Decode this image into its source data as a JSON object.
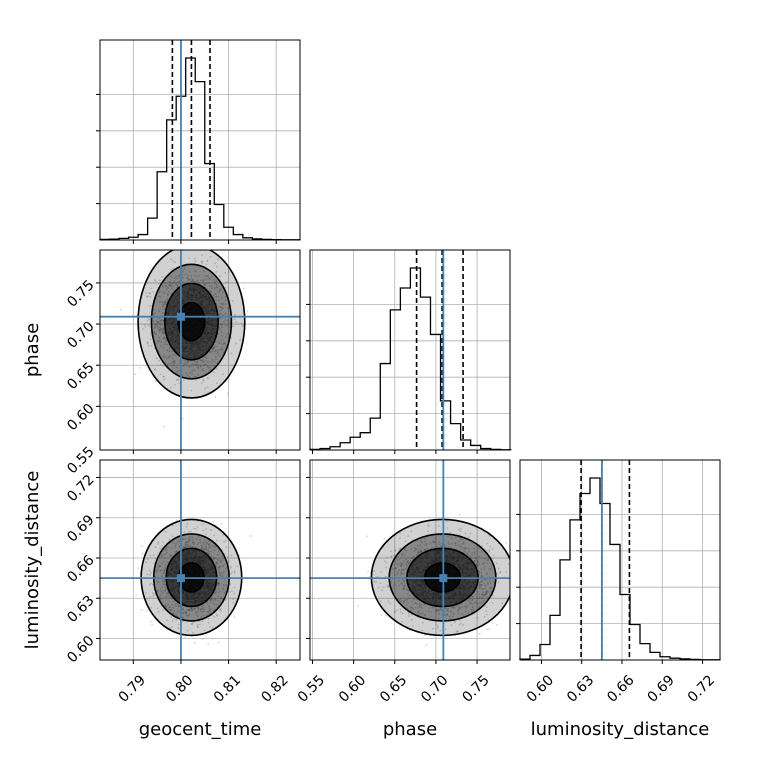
{
  "chart_data": {
    "type": "corner",
    "parameters": [
      "geocent_time",
      "phase",
      "luminosity_distance"
    ],
    "truth": {
      "geocent_time": 0.8,
      "phase": 0.709,
      "luminosity_distance": 0.645
    },
    "colors": {
      "truth": "#4682b4",
      "hist": "#000000",
      "quantile": "#000000",
      "grid": "#b0b0b0",
      "points": "#808080",
      "density": "#000000"
    },
    "grid": true,
    "axes": {
      "geocent_time": {
        "label": "geocent_time",
        "range": [
          0.783,
          0.825
        ],
        "ticks": [
          0.79,
          0.8,
          0.81,
          0.82
        ],
        "tick_labels": [
          "0.79",
          "0.80",
          "0.81",
          "0.82"
        ]
      },
      "phase": {
        "label": "phase",
        "range": [
          0.547,
          0.79
        ],
        "ticks": [
          0.55,
          0.6,
          0.65,
          0.7,
          0.75
        ],
        "tick_labels": [
          "0.55",
          "0.60",
          "0.65",
          "0.70",
          "0.75"
        ]
      },
      "luminosity_distance": {
        "label": "luminosity_distance",
        "range": [
          0.584,
          0.733
        ],
        "ticks": [
          0.6,
          0.63,
          0.66,
          0.69,
          0.72
        ],
        "tick_labels": [
          "0.60",
          "0.63",
          "0.66",
          "0.69",
          "0.72"
        ]
      }
    },
    "row_tick_labels": {
      "phase": [
        "0.60",
        "0.65",
        "0.70",
        "0.75"
      ],
      "luminosity_distance": [
        "0.60",
        "0.63",
        "0.66",
        "0.69",
        "0.72"
      ]
    },
    "row_tick_values": {
      "phase": [
        0.6,
        0.65,
        0.7,
        0.75
      ],
      "luminosity_distance": [
        0.6,
        0.63,
        0.66,
        0.69,
        0.72
      ]
    },
    "marginals": [
      {
        "param": "geocent_time",
        "bin_start": 0.783,
        "bin_width": 0.002,
        "counts": [
          3,
          5,
          9,
          15,
          30,
          120,
          375,
          660,
          790,
          1000,
          870,
          420,
          195,
          70,
          30,
          12,
          6,
          3,
          2,
          1,
          1
        ],
        "quantiles": [
          0.7982,
          0.8022,
          0.8061
        ]
      },
      {
        "param": "phase",
        "bin_start": 0.547,
        "bin_width": 0.0122,
        "counts": [
          3,
          8,
          18,
          40,
          70,
          95,
          175,
          475,
          770,
          890,
          1000,
          840,
          635,
          270,
          145,
          55,
          25,
          8,
          3,
          1
        ],
        "quantiles": [
          0.6765,
          0.7075,
          0.733
        ]
      },
      {
        "param": "luminosity_distance",
        "bin_start": 0.584,
        "bin_width": 0.00745,
        "counts": [
          5,
          25,
          85,
          245,
          550,
          770,
          915,
          1000,
          860,
          635,
          360,
          195,
          90,
          42,
          18,
          10,
          6,
          3,
          1,
          1
        ],
        "quantiles": [
          0.6295,
          0.645,
          0.6655
        ]
      }
    ],
    "joints": [
      {
        "x": "geocent_time",
        "y": "phase",
        "center": [
          0.8022,
          0.703
        ],
        "sigma": [
          0.0035,
          0.029
        ],
        "n_points": 1800
      },
      {
        "x": "geocent_time",
        "y": "luminosity_distance",
        "center": [
          0.8022,
          0.6455
        ],
        "sigma": [
          0.0033,
          0.0135
        ],
        "n_points": 1800
      },
      {
        "x": "phase",
        "y": "luminosity_distance",
        "center": [
          0.708,
          0.6455
        ],
        "sigma": [
          0.027,
          0.0135
        ],
        "n_points": 1800
      }
    ],
    "contour_levels_sigma": [
      0.5,
      1.0,
      1.5,
      2.0
    ]
  }
}
